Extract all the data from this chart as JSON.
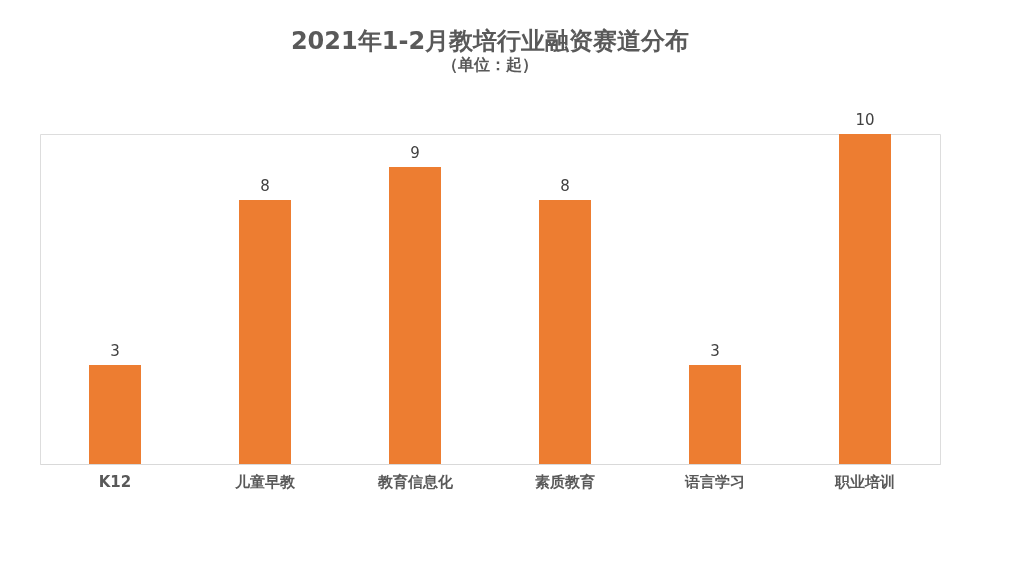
{
  "chart_data": {
    "type": "bar",
    "title": "2021年1-2月教培行业融资赛道分布",
    "subtitle": "（单位：起）",
    "categories": [
      "K12",
      "儿童早教",
      "教育信息化",
      "素质教育",
      "语言学习",
      "职业培训"
    ],
    "values": [
      3,
      8,
      9,
      8,
      3,
      10
    ],
    "color": "#ed7d31",
    "data_labels": true
  }
}
